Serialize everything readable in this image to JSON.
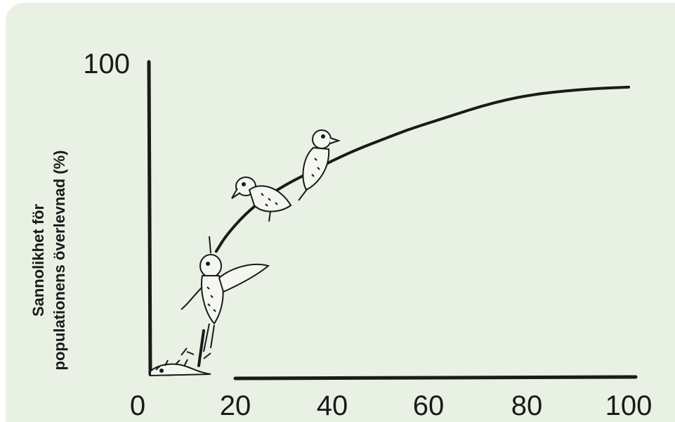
{
  "chart_data": {
    "type": "line",
    "title": "",
    "xlabel": "",
    "ylabel_line1": "Sannolikhet för",
    "ylabel_line2": "populationens överlevnad (%)",
    "xlim": [
      0,
      100
    ],
    "ylim": [
      0,
      100
    ],
    "x_ticks": [
      "0",
      "20",
      "40",
      "60",
      "80",
      "100"
    ],
    "y_ticks": [
      "100"
    ],
    "series": [
      {
        "x": [
          16,
          18,
          22,
          26,
          30,
          35,
          40,
          45,
          50,
          55,
          60,
          65,
          70,
          75,
          80,
          85,
          90,
          95,
          100
        ],
        "values": [
          40,
          45,
          52,
          57,
          61,
          65,
          69,
          72.5,
          75.5,
          78.5,
          81,
          83.5,
          86,
          88,
          89.5,
          90.5,
          91.2,
          91.7,
          92
        ]
      }
    ],
    "grid": false,
    "legend": "none"
  }
}
